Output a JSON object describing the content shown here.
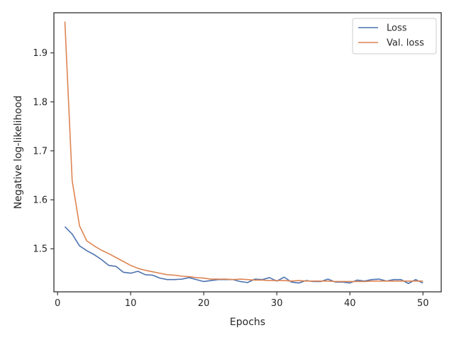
{
  "chart_data": {
    "type": "line",
    "title": "",
    "xlabel": "Epochs",
    "ylabel": "Negative log-likelihood",
    "xlim": [
      -0.5,
      52.5
    ],
    "ylim": [
      1.412,
      1.982
    ],
    "xticks": [
      0,
      10,
      20,
      30,
      40,
      50
    ],
    "yticks": [
      1.5,
      1.6,
      1.7,
      1.8,
      1.9
    ],
    "grid": false,
    "legend_position": "top-right",
    "x": [
      1,
      2,
      3,
      4,
      5,
      6,
      7,
      8,
      9,
      10,
      11,
      12,
      13,
      14,
      15,
      16,
      17,
      18,
      19,
      20,
      21,
      22,
      23,
      24,
      25,
      26,
      27,
      28,
      29,
      30,
      31,
      32,
      33,
      34,
      35,
      36,
      37,
      38,
      39,
      40,
      41,
      42,
      43,
      44,
      45,
      46,
      47,
      48,
      49,
      50
    ],
    "series": [
      {
        "name": "Loss",
        "color": "#4c72b0",
        "values": [
          1.545,
          1.53,
          1.506,
          1.496,
          1.488,
          1.478,
          1.466,
          1.464,
          1.452,
          1.45,
          1.454,
          1.447,
          1.446,
          1.44,
          1.437,
          1.437,
          1.438,
          1.441,
          1.437,
          1.433,
          1.435,
          1.437,
          1.437,
          1.437,
          1.433,
          1.431,
          1.438,
          1.437,
          1.441,
          1.434,
          1.442,
          1.432,
          1.43,
          1.435,
          1.433,
          1.433,
          1.438,
          1.432,
          1.432,
          1.43,
          1.436,
          1.434,
          1.437,
          1.438,
          1.434,
          1.437,
          1.437,
          1.429,
          1.437,
          1.43
        ]
      },
      {
        "name": "Val. loss",
        "color": "#dd8452",
        "values": [
          1.964,
          1.639,
          1.547,
          1.516,
          1.506,
          1.497,
          1.49,
          1.482,
          1.474,
          1.466,
          1.46,
          1.456,
          1.453,
          1.45,
          1.447,
          1.446,
          1.444,
          1.443,
          1.441,
          1.44,
          1.438,
          1.438,
          1.438,
          1.437,
          1.438,
          1.437,
          1.436,
          1.436,
          1.435,
          1.435,
          1.435,
          1.434,
          1.435,
          1.434,
          1.434,
          1.434,
          1.434,
          1.433,
          1.433,
          1.433,
          1.433,
          1.433,
          1.434,
          1.434,
          1.434,
          1.434,
          1.434,
          1.434,
          1.434,
          1.434
        ]
      }
    ]
  }
}
